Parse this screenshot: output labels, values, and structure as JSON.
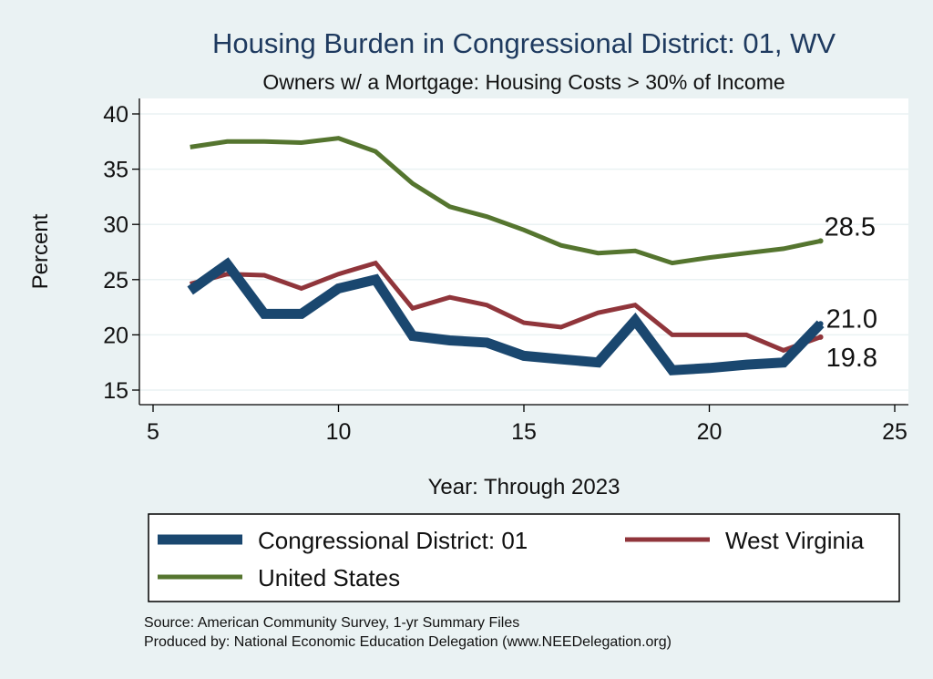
{
  "chart_data": {
    "type": "line",
    "title": "Housing Burden in Congressional District:  01, WV",
    "subtitle": "Owners w/ a Mortgage: Housing Costs > 30% of Income",
    "xlabel": "Year: Through 2023",
    "ylabel": "Percent",
    "xlim": [
      5,
      25
    ],
    "ylim": [
      15,
      40
    ],
    "xticks": [
      5,
      10,
      15,
      20,
      25
    ],
    "yticks": [
      15,
      20,
      25,
      30,
      35,
      40
    ],
    "grid": true,
    "legend_position": "bottom",
    "series": [
      {
        "name": "Congressional District:  01",
        "color": "#1a476f",
        "x": [
          6,
          7,
          8,
          9,
          10,
          11,
          12,
          13,
          14,
          15,
          16,
          17,
          18,
          19,
          20,
          21,
          22,
          23
        ],
        "values": [
          24.0,
          26.4,
          21.9,
          21.9,
          24.2,
          25.0,
          19.9,
          19.5,
          19.3,
          18.1,
          17.8,
          17.5,
          21.3,
          16.8,
          17.0,
          17.3,
          17.5,
          21.0
        ],
        "end_label": "21.0"
      },
      {
        "name": "West Virginia",
        "color": "#90353b",
        "x": [
          6,
          7,
          8,
          9,
          10,
          11,
          12,
          13,
          14,
          15,
          16,
          17,
          18,
          19,
          20,
          21,
          22,
          23
        ],
        "values": [
          24.6,
          25.5,
          25.4,
          24.2,
          25.5,
          26.5,
          22.4,
          23.4,
          22.7,
          21.1,
          20.7,
          22.0,
          22.7,
          20.0,
          20.0,
          20.0,
          18.6,
          19.8
        ],
        "end_label": "19.8"
      },
      {
        "name": "United States",
        "color": "#55752f",
        "x": [
          6,
          7,
          8,
          9,
          10,
          11,
          12,
          13,
          14,
          15,
          16,
          17,
          18,
          19,
          20,
          21,
          22,
          23
        ],
        "values": [
          37.0,
          37.5,
          37.5,
          37.4,
          37.8,
          36.6,
          33.7,
          31.6,
          30.7,
          29.5,
          28.1,
          27.4,
          27.6,
          26.5,
          27.0,
          27.4,
          27.8,
          28.5
        ],
        "end_label": "28.5"
      }
    ]
  },
  "source_line1": "Source: American Community Survey, 1-yr Summary Files",
  "source_line2": "Produced by: National Economic Education Delegation (www.NEEDelegation.org)"
}
